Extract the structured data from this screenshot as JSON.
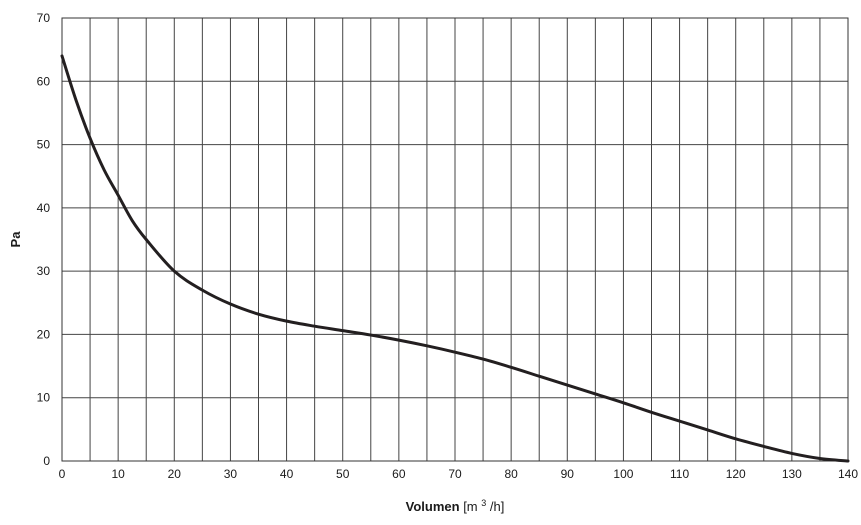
{
  "chart_data": {
    "type": "line",
    "title": "",
    "xlabel": {
      "main": "Volumen",
      "unit_prefix": "[m",
      "unit_sup": "3",
      "unit_suffix": "/h]"
    },
    "ylabel": "Pa",
    "xlim": [
      0,
      140
    ],
    "ylim": [
      0,
      70
    ],
    "x_ticks": [
      0,
      10,
      20,
      30,
      40,
      50,
      60,
      70,
      80,
      90,
      100,
      110,
      120,
      130,
      140
    ],
    "y_ticks": [
      0,
      10,
      20,
      30,
      40,
      50,
      60,
      70
    ],
    "x_gridlines_every": 5,
    "y_gridlines_every": 10,
    "grid": true,
    "legend": "none",
    "line_color": "#231f20",
    "series": [
      {
        "x": [
          0,
          2.5,
          5,
          7.5,
          10,
          12.5,
          15,
          20,
          25,
          30,
          35,
          40,
          45,
          50,
          55,
          60,
          65,
          70,
          75,
          80,
          85,
          90,
          95,
          100,
          105,
          110,
          115,
          120,
          125,
          130,
          135,
          140
        ],
        "values": [
          64,
          57,
          51,
          46,
          42,
          38,
          35,
          30,
          27,
          24.8,
          23.2,
          22.1,
          21.3,
          20.6,
          19.9,
          19.1,
          18.2,
          17.2,
          16.1,
          14.8,
          13.4,
          12,
          10.6,
          9.2,
          7.7,
          6.3,
          4.9,
          3.5,
          2.3,
          1.2,
          0.4,
          0
        ]
      }
    ]
  }
}
